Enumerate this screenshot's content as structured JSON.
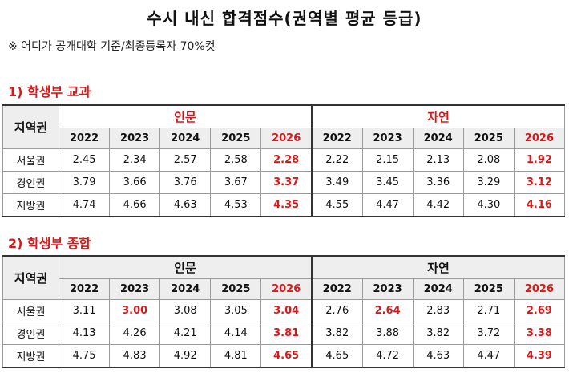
{
  "title": "수시 내신 합격점수(권역별 평균 등급)",
  "note": "※ 어디가 공개대학 기준/최종등록자 70%컷",
  "region_header": "지역권",
  "years": [
    "2022",
    "2023",
    "2024",
    "2025",
    "2026"
  ],
  "sections": [
    {
      "heading": "1) 학생부 교과",
      "groups": [
        "인문",
        "자연"
      ],
      "rows": [
        {
          "region": "서울권",
          "humanities": [
            "2.45",
            "2.34",
            "2.57",
            "2.58",
            "2.28"
          ],
          "science": [
            "2.22",
            "2.15",
            "2.13",
            "2.08",
            "1.92"
          ]
        },
        {
          "region": "경인권",
          "humanities": [
            "3.79",
            "3.66",
            "3.76",
            "3.67",
            "3.37"
          ],
          "science": [
            "3.49",
            "3.45",
            "3.36",
            "3.29",
            "3.12"
          ]
        },
        {
          "region": "지방권",
          "humanities": [
            "4.74",
            "4.66",
            "4.63",
            "4.53",
            "4.35"
          ],
          "science": [
            "4.55",
            "4.47",
            "4.42",
            "4.30",
            "4.16"
          ]
        }
      ]
    },
    {
      "heading": "2) 학생부 종합",
      "groups": [
        "인문",
        "자연"
      ],
      "rows": [
        {
          "region": "서울권",
          "humanities": [
            "3.11",
            "3.00",
            "3.08",
            "3.05",
            "3.04"
          ],
          "science": [
            "2.76",
            "2.64",
            "2.83",
            "2.71",
            "2.69"
          ]
        },
        {
          "region": "경인권",
          "humanities": [
            "4.13",
            "4.26",
            "4.21",
            "4.14",
            "3.81"
          ],
          "science": [
            "3.82",
            "3.88",
            "3.82",
            "3.72",
            "3.38"
          ]
        },
        {
          "region": "지방권",
          "humanities": [
            "4.75",
            "4.83",
            "4.92",
            "4.81",
            "4.65"
          ],
          "science": [
            "4.65",
            "4.72",
            "4.63",
            "4.47",
            "4.39"
          ]
        }
      ]
    }
  ],
  "colors": {
    "highlight": "#d41a1a",
    "header_shade": "#eeeeee",
    "border": "#9a9a9a"
  }
}
